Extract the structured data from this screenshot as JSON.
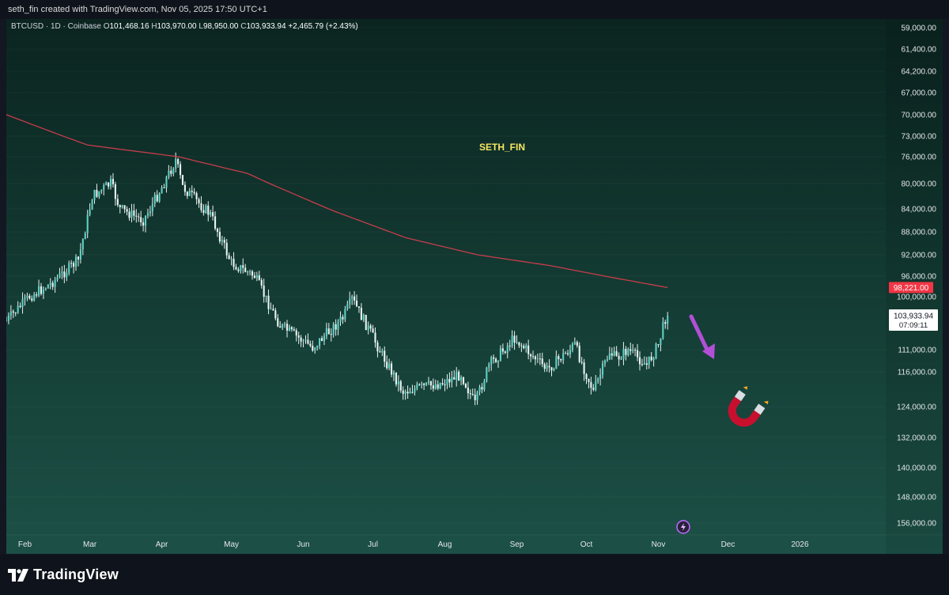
{
  "header": {
    "attribution": "seth_fin created with TradingView.com, Nov 05, 2025 17:50 UTC+1"
  },
  "legend": {
    "symbol": "BTCUSD · 1D · Coinbase",
    "open_label": "O",
    "open": "101,468.16",
    "high_label": "H",
    "high": "103,970.00",
    "low_label": "L",
    "low": "98,950.00",
    "close_label": "C",
    "close": "103,933.94",
    "change": "+2,465.79 (+2.43%)"
  },
  "watermark": "SETH_FIN",
  "footer": {
    "brand": "TradingView"
  },
  "colors": {
    "up": "#5fd0c5",
    "ma_line": "#c83d4b",
    "ma_label_bg": "#f23645",
    "arrow": "#b34fd6",
    "magnet_red": "#c8102e",
    "watermark": "#f5e663"
  },
  "icons": {
    "magnet": "magnet-icon",
    "arrow": "down-arrow-icon",
    "replay": "lightning-icon"
  },
  "chart_data": {
    "type": "candlestick",
    "y_axis_inverted": true,
    "ylim": [
      57000,
      160000
    ],
    "y_ticks": [
      {
        "v": 59000,
        "label": "59,000.00"
      },
      {
        "v": 61400,
        "label": "61,400.00"
      },
      {
        "v": 64200,
        "label": "64,200.00"
      },
      {
        "v": 67000,
        "label": "67,000.00"
      },
      {
        "v": 70000,
        "label": "70,000.00"
      },
      {
        "v": 73000,
        "label": "73,000.00"
      },
      {
        "v": 76000,
        "label": "76,000.00"
      },
      {
        "v": 80000,
        "label": "80,000.00"
      },
      {
        "v": 84000,
        "label": "84,000.00"
      },
      {
        "v": 88000,
        "label": "88,000.00"
      },
      {
        "v": 92000,
        "label": "92,000.00"
      },
      {
        "v": 96000,
        "label": "96,000.00"
      },
      {
        "v": 100000,
        "label": "100,000.00"
      },
      {
        "v": 111000,
        "label": "111,000.00"
      },
      {
        "v": 116000,
        "label": "116,000.00"
      },
      {
        "v": 124000,
        "label": "124,000.00"
      },
      {
        "v": 132000,
        "label": "132,000.00"
      },
      {
        "v": 140000,
        "label": "140,000.00"
      },
      {
        "v": 148000,
        "label": "148,000.00"
      },
      {
        "v": 156000,
        "label": "156,000.00"
      }
    ],
    "x_ticks": [
      {
        "d": "2025-02-01",
        "label": "Feb"
      },
      {
        "d": "2025-03-01",
        "label": "Mar"
      },
      {
        "d": "2025-04-01",
        "label": "Apr"
      },
      {
        "d": "2025-05-01",
        "label": "May"
      },
      {
        "d": "2025-06-01",
        "label": "Jun"
      },
      {
        "d": "2025-07-01",
        "label": "Jul"
      },
      {
        "d": "2025-08-01",
        "label": "Aug"
      },
      {
        "d": "2025-09-01",
        "label": "Sep"
      },
      {
        "d": "2025-10-01",
        "label": "Oct"
      },
      {
        "d": "2025-11-01",
        "label": "Nov"
      },
      {
        "d": "2025-12-01",
        "label": "Dec"
      },
      {
        "d": "2026-01-01",
        "label": "2026"
      }
    ],
    "xlim": [
      "2025-01-24",
      "2026-02-07"
    ],
    "price_anchors": [
      [
        "2025-01-24",
        105000
      ],
      [
        "2025-02-03",
        100000
      ],
      [
        "2025-02-12",
        97500
      ],
      [
        "2025-02-24",
        93000
      ],
      [
        "2025-03-02",
        82000
      ],
      [
        "2025-03-10",
        80000
      ],
      [
        "2025-03-14",
        84000
      ],
      [
        "2025-03-24",
        86000
      ],
      [
        "2025-04-07",
        76500
      ],
      [
        "2025-04-10",
        80500
      ],
      [
        "2025-04-22",
        85000
      ],
      [
        "2025-05-01",
        93500
      ],
      [
        "2025-05-11",
        96000
      ],
      [
        "2025-05-22",
        106000
      ],
      [
        "2025-06-05",
        110500
      ],
      [
        "2025-06-18",
        104500
      ],
      [
        "2025-06-22",
        100500
      ],
      [
        "2025-06-30",
        107500
      ],
      [
        "2025-07-14",
        120500
      ],
      [
        "2025-07-31",
        118500
      ],
      [
        "2025-08-08",
        116500
      ],
      [
        "2025-08-14",
        123500
      ],
      [
        "2025-08-20",
        114500
      ],
      [
        "2025-08-31",
        108500
      ],
      [
        "2025-09-14",
        115500
      ],
      [
        "2025-09-26",
        110000
      ],
      [
        "2025-10-04",
        120500
      ],
      [
        "2025-10-11",
        111500
      ],
      [
        "2025-10-14",
        113000
      ],
      [
        "2025-10-19",
        111000
      ],
      [
        "2025-10-27",
        114500
      ],
      [
        "2025-11-01",
        110000
      ],
      [
        "2025-11-04",
        104500
      ],
      [
        "2025-11-05",
        103934
      ]
    ],
    "series": [
      {
        "name": "",
        "type": "line",
        "points": [
          [
            "2025-01-24",
            70000
          ],
          [
            "2025-02-28",
            74300
          ],
          [
            "2025-04-08",
            76000
          ],
          [
            "2025-05-08",
            78500
          ],
          [
            "2025-06-15",
            84500
          ],
          [
            "2025-07-15",
            89000
          ],
          [
            "2025-08-15",
            92000
          ],
          [
            "2025-09-15",
            94000
          ],
          [
            "2025-10-15",
            96500
          ],
          [
            "2025-11-05",
            98221
          ]
        ]
      }
    ],
    "price_labels": [
      {
        "value": "98,221.00",
        "v": 98221,
        "style": "ma"
      },
      {
        "value": "103,933.94",
        "sub": "07:09:11",
        "v": 103934,
        "style": "last"
      }
    ]
  }
}
